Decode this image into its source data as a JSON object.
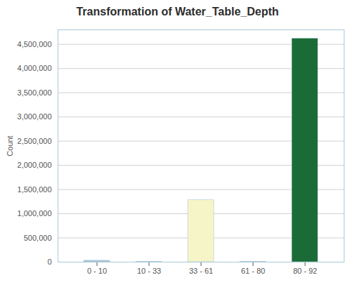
{
  "chart_data": {
    "type": "bar",
    "title": "Transformation of Water_Table_Depth",
    "ylabel": "Count",
    "categories": [
      "0 - 10",
      "10 - 33",
      "33 - 61",
      "61 - 80",
      "80 - 92"
    ],
    "values": [
      30000,
      5000,
      1280000,
      8000,
      4620000
    ],
    "colors": [
      "#a8c4d4",
      "#d0dde4",
      "#f5f5c8",
      "#d0dde4",
      "#1a6b35"
    ],
    "ylim": [
      0,
      4800000
    ],
    "yticks": [
      0,
      {
        "value": 500000,
        "label": "500,000"
      },
      {
        "value": 1000000,
        "label": "1,000,000"
      },
      {
        "value": 1500000,
        "label": "1,500,000"
      },
      {
        "value": 2000000,
        "label": "2,000,000"
      },
      {
        "value": 2500000,
        "label": "2,500,000"
      },
      {
        "value": 3000000,
        "label": "3,000,000"
      },
      {
        "value": 3500000,
        "label": "3,500,000"
      },
      {
        "value": 4000000,
        "label": "4,000,000"
      },
      {
        "value": 4500000,
        "label": "4,500,000"
      }
    ],
    "grid": true
  }
}
